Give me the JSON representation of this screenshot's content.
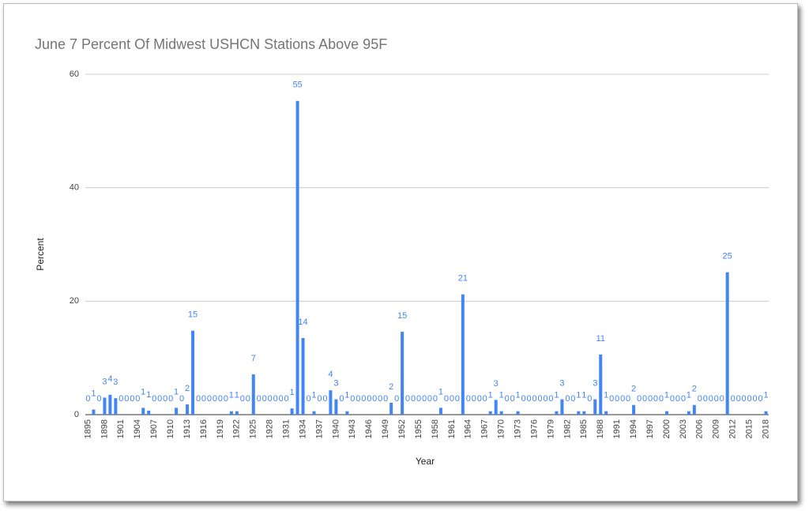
{
  "chart_data": {
    "type": "bar",
    "title": "June 7 Percent Of Midwest USHCN Stations Above 95F",
    "x_label": "Year",
    "y_label": "Percent",
    "color": "#4285f4",
    "categories": [
      "1895",
      null,
      null,
      "1898",
      null,
      null,
      "1901",
      null,
      null,
      "1904",
      null,
      null,
      "1907",
      null,
      null,
      "1910",
      null,
      null,
      "1913",
      null,
      null,
      "1916",
      null,
      null,
      "1919",
      null,
      null,
      "1922",
      null,
      null,
      "1925",
      null,
      null,
      "1928",
      null,
      null,
      "1931",
      null,
      null,
      "1934",
      null,
      null,
      "1937",
      null,
      null,
      "1940",
      null,
      null,
      "1943",
      null,
      null,
      "1946",
      null,
      null,
      "1949",
      null,
      null,
      "1952",
      null,
      null,
      "1955",
      null,
      null,
      "1958",
      null,
      null,
      "1961",
      null,
      null,
      "1964",
      null,
      null,
      "1967",
      null,
      null,
      "1970",
      null,
      null,
      "1973",
      null,
      null,
      "1976",
      null,
      null,
      "1979",
      null,
      null,
      "1982",
      null,
      null,
      "1985",
      null,
      null,
      "1988",
      null,
      null,
      "1991",
      null,
      null,
      "1994",
      null,
      null,
      "1997",
      null,
      null,
      "2000",
      null,
      null,
      "2003",
      null,
      null,
      "2006",
      null,
      null,
      "2009",
      null,
      null,
      "2012",
      null,
      null,
      "2015",
      null,
      null,
      "2018"
    ],
    "values": [
      0,
      0.9,
      0,
      3,
      3.5,
      2.9,
      0,
      0,
      0,
      0,
      1.2,
      0.7,
      0,
      0,
      0,
      0,
      1.2,
      0,
      1.8,
      14.8,
      0,
      0,
      0,
      0,
      0,
      0,
      0.6,
      0.6,
      0,
      0,
      7.1,
      0,
      0,
      0,
      0,
      0,
      0,
      1.1,
      55.3,
      13.5,
      0,
      0.6,
      0,
      0,
      4.3,
      2.7,
      0,
      0.6,
      0,
      0,
      0,
      0,
      0,
      0,
      0,
      2.1,
      0,
      14.6,
      0,
      0,
      0,
      0,
      0,
      0,
      1.2,
      0,
      0,
      0,
      21.2,
      0,
      0,
      0,
      0,
      0.6,
      2.6,
      0.6,
      0,
      0,
      0.6,
      0,
      0,
      0,
      0,
      0,
      0,
      0.6,
      2.7,
      0,
      0,
      0.6,
      0.6,
      0,
      2.7,
      10.6,
      0.6,
      0,
      0,
      0,
      0,
      1.7,
      0,
      0,
      0,
      0,
      0,
      0.6,
      0,
      0,
      0,
      0.6,
      1.7,
      0,
      0,
      0,
      0,
      0,
      25.1,
      0,
      0,
      0,
      0,
      0,
      0,
      0.6
    ],
    "value_labels": [
      "0",
      "1",
      "0",
      "3",
      "4",
      "3",
      "0",
      "0",
      "0",
      "0",
      "1",
      "1",
      "0",
      "0",
      "0",
      "0",
      "1",
      "0",
      "2",
      "15",
      "0",
      "0",
      "0",
      "0",
      "0",
      "0",
      "1",
      "1",
      "0",
      "0",
      "7",
      "0",
      "0",
      "0",
      "0",
      "0",
      "0",
      "1",
      "55",
      "14",
      "0",
      "1",
      "0",
      "0",
      "4",
      "3",
      "0",
      "1",
      "0",
      "0",
      "0",
      "0",
      "0",
      "0",
      "0",
      "2",
      "0",
      "15",
      "0",
      "0",
      "0",
      "0",
      "0",
      "0",
      "1",
      "0",
      "0",
      "0",
      "21",
      "0",
      "0",
      "0",
      "0",
      "1",
      "3",
      "1",
      "0",
      "0",
      "1",
      "0",
      "0",
      "0",
      "0",
      "0",
      "0",
      "1",
      "3",
      "0",
      "0",
      "1",
      "1",
      "0",
      "3",
      "11",
      "1",
      "0",
      "0",
      "0",
      "0",
      "2",
      "0",
      "0",
      "0",
      "0",
      "0",
      "1",
      "0",
      "0",
      "0",
      "1",
      "2",
      "0",
      "0",
      "0",
      "0",
      "0",
      "25",
      "0",
      "0",
      "0",
      "0",
      "0",
      "0",
      "1"
    ],
    "ylim": [
      0,
      60
    ],
    "yticks": [
      0,
      20,
      40,
      60
    ],
    "grid": true
  }
}
